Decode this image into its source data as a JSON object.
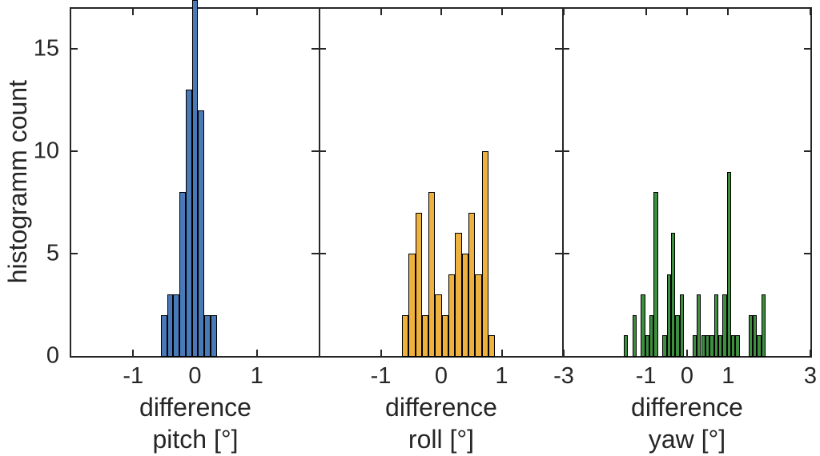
{
  "figure": {
    "ylabel": "histogramm count",
    "background_color": "#ffffff",
    "axis_color": "#262626",
    "text_color": "#262626",
    "ylim": [
      0,
      17
    ],
    "yticks": [
      0,
      5,
      10,
      15
    ],
    "grid": false,
    "legend": "none"
  },
  "chart_data": [
    {
      "type": "bar",
      "subtype": "histogram",
      "name": "pitch-histogram",
      "xlabel_line1": "difference",
      "xlabel_line2": "pitch [°]",
      "bar_color": "#4a79b8",
      "bar_edge_color": "#000000",
      "xlim": [
        -2,
        2
      ],
      "xticks": [
        -1,
        0,
        1
      ],
      "bin_start": -0.55,
      "bin_width": 0.1,
      "values": [
        2,
        3,
        3,
        8,
        13,
        17,
        12,
        2,
        2
      ],
      "clipped_bins": [
        5
      ],
      "note_peak": "tallest bar exceeds axis top (clipped at figure edge)"
    },
    {
      "type": "bar",
      "subtype": "histogram",
      "name": "roll-histogram",
      "xlabel_line1": "difference",
      "xlabel_line2": "roll [°]",
      "bar_color": "#efb13e",
      "bar_edge_color": "#000000",
      "xlim": [
        -2,
        2
      ],
      "xticks": [
        -1,
        0,
        1
      ],
      "bin_start": -0.65,
      "bin_width": 0.11,
      "values": [
        2,
        5,
        7,
        2,
        8,
        3,
        2,
        4,
        6,
        5,
        7,
        4,
        10,
        1
      ],
      "clipped_bins": []
    },
    {
      "type": "bar",
      "subtype": "histogram",
      "name": "yaw-histogram",
      "xlabel_line1": "difference",
      "xlabel_line2": "yaw [°]",
      "bar_color": "#3e8e40",
      "bar_edge_color": "#000000",
      "xlim": [
        -3,
        3
      ],
      "xticks": [
        -3,
        -1,
        0,
        1,
        3
      ],
      "bin_start": -1.54,
      "bin_width": 0.1045,
      "values": [
        1,
        0,
        2,
        0,
        3,
        1,
        2,
        8,
        0,
        1,
        4,
        6,
        2,
        3,
        0,
        0,
        1,
        3,
        1,
        1,
        1,
        3,
        1,
        3,
        9,
        1,
        1,
        0,
        0,
        2,
        2,
        1,
        3
      ],
      "clipped_bins": []
    }
  ]
}
